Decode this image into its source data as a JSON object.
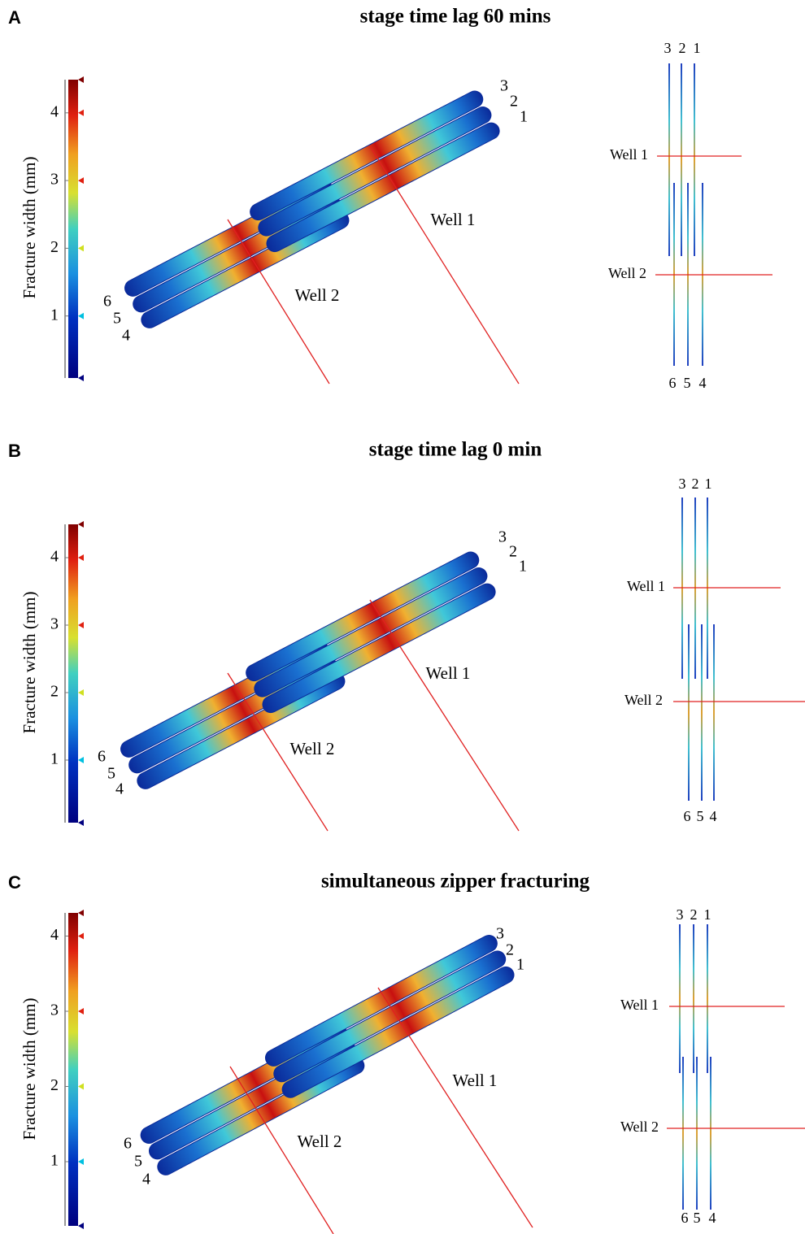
{
  "panels": [
    {
      "label": "A",
      "title": "stage time lag 60 mins",
      "colorbar": {
        "label": "Fracture width (mm)",
        "ticks": [
          1,
          2,
          3,
          4
        ]
      },
      "side_view": {
        "fracture_labels": [
          "1",
          "2",
          "3",
          "4",
          "5",
          "6"
        ],
        "well_labels": [
          "Well 1",
          "Well 2"
        ]
      },
      "top_view": {
        "top_labels": [
          "3",
          "2",
          "1"
        ],
        "bottom_labels": [
          "6",
          "5",
          "4"
        ],
        "well_labels": [
          "Well 1",
          "Well 2"
        ]
      }
    },
    {
      "label": "B",
      "title": "stage time lag 0 min",
      "colorbar": {
        "label": "Fracture width (mm)",
        "ticks": [
          1,
          2,
          3,
          4
        ]
      },
      "side_view": {
        "fracture_labels": [
          "1",
          "2",
          "3",
          "4",
          "5",
          "6"
        ],
        "well_labels": [
          "Well 1",
          "Well 2"
        ]
      },
      "top_view": {
        "top_labels": [
          "3",
          "2",
          "1"
        ],
        "bottom_labels": [
          "6",
          "5",
          "4"
        ],
        "well_labels": [
          "Well 1",
          "Well 2"
        ]
      }
    },
    {
      "label": "C",
      "title": "simultaneous zipper fracturing",
      "colorbar": {
        "label": "Fracture width (mm)",
        "ticks": [
          1,
          2,
          3,
          4
        ]
      },
      "side_view": {
        "fracture_labels": [
          "1",
          "2",
          "3",
          "4",
          "5",
          "6"
        ],
        "well_labels": [
          "Well 1",
          "Well 2"
        ]
      },
      "top_view": {
        "top_labels": [
          "3",
          "2",
          "1"
        ],
        "bottom_labels": [
          "6",
          "5",
          "4"
        ],
        "well_labels": [
          "Well 1",
          "Well 2"
        ]
      }
    }
  ]
}
